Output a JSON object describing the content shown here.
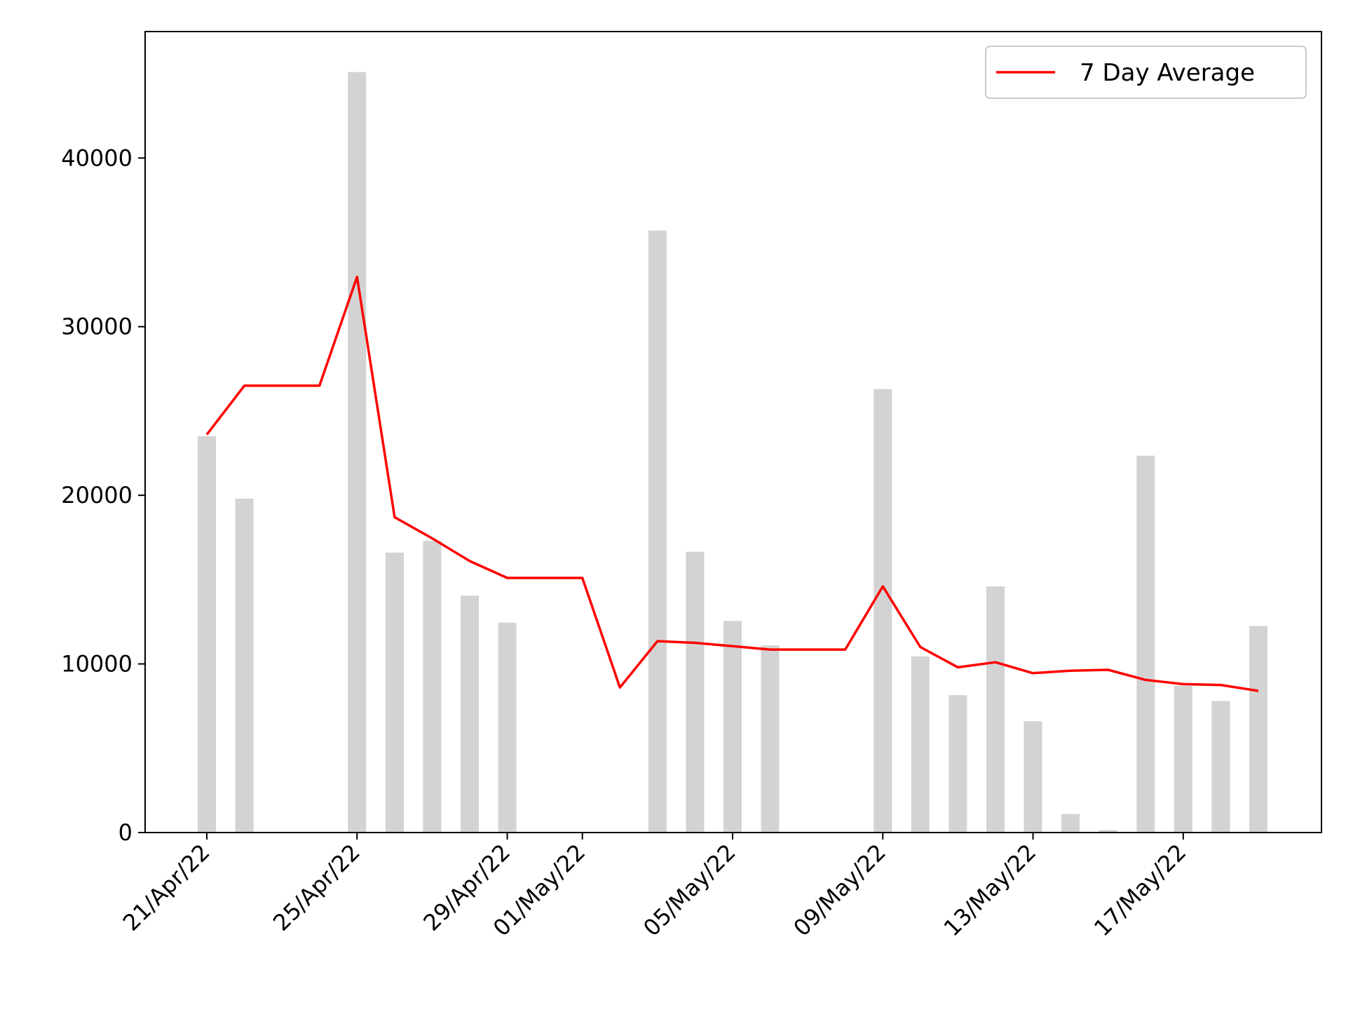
{
  "chart_data": {
    "type": "bar+line",
    "title": "",
    "xlabel": "",
    "ylabel": "",
    "ylim": [
      0,
      47500
    ],
    "grid": false,
    "legend_position": "top-right",
    "colors": {
      "bars": "#d3d3d3",
      "line": "#ff0000"
    },
    "yticks": [
      "0",
      "10000",
      "20000",
      "30000",
      "40000"
    ],
    "xticks": [
      "21/Apr/22",
      "25/Apr/22",
      "29/Apr/22",
      "01/May/22",
      "05/May/22",
      "09/May/22",
      "13/May/22",
      "17/May/22"
    ],
    "xtick_dates": [
      "2022-04-21",
      "2022-04-25",
      "2022-04-29",
      "2022-05-01",
      "2022-05-05",
      "2022-05-09",
      "2022-05-13",
      "2022-05-17"
    ],
    "dates": [
      "2022-04-21",
      "2022-04-22",
      "2022-04-23",
      "2022-04-24",
      "2022-04-25",
      "2022-04-26",
      "2022-04-27",
      "2022-04-28",
      "2022-04-29",
      "2022-04-30",
      "2022-05-01",
      "2022-05-02",
      "2022-05-03",
      "2022-05-04",
      "2022-05-05",
      "2022-05-06",
      "2022-05-07",
      "2022-05-08",
      "2022-05-09",
      "2022-05-10",
      "2022-05-11",
      "2022-05-12",
      "2022-05-13",
      "2022-05-14",
      "2022-05-15",
      "2022-05-16",
      "2022-05-17",
      "2022-05-18",
      "2022-05-19"
    ],
    "series": [
      {
        "type": "bar",
        "values": [
          23500,
          19800,
          0,
          0,
          45100,
          16600,
          17300,
          14050,
          12450,
          0,
          0,
          0,
          35700,
          16650,
          12550,
          11100,
          0,
          0,
          26300,
          10450,
          8150,
          14600,
          6600,
          1100,
          150,
          22350,
          8700,
          7800,
          12250
        ]
      },
      {
        "type": "line",
        "name": "7 Day Average",
        "values": [
          23600,
          26500,
          26500,
          26500,
          32950,
          18700,
          17450,
          16100,
          15100,
          15100,
          15100,
          8600,
          11350,
          11250,
          11050,
          10850,
          10850,
          10850,
          14600,
          11000,
          9800,
          10100,
          9450,
          9600,
          9650,
          9050,
          8800,
          8750,
          8400
        ]
      }
    ]
  }
}
